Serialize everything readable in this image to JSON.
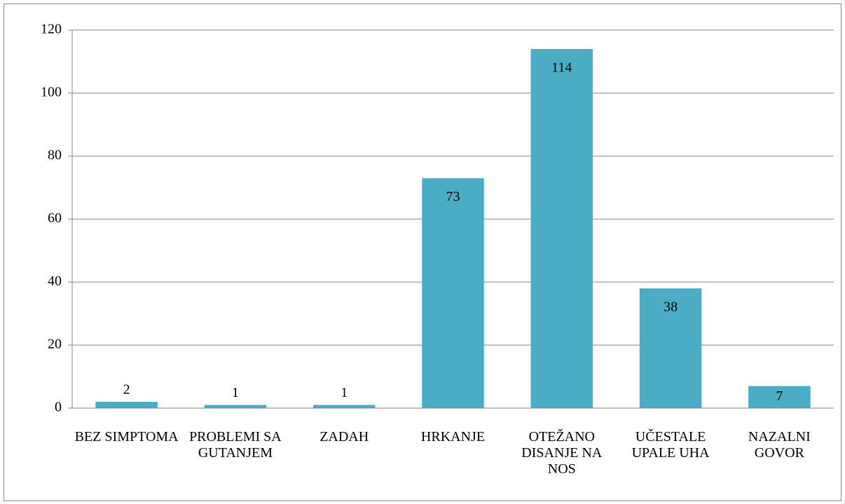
{
  "chart_data": {
    "type": "bar",
    "categories": [
      "BEZ SIMPTOMA",
      "PROBLEMI SA GUTANJEM",
      "ZADAH",
      "HRKANJE",
      "OTEŽANO DISANJE NA NOS",
      "UČESTALE UPALE UHA",
      "NAZALNI GOVOR"
    ],
    "values": [
      2,
      1,
      1,
      73,
      114,
      38,
      7
    ],
    "color": "#4bacc6",
    "ylim": [
      0,
      120
    ],
    "yticks": [
      0,
      20,
      40,
      60,
      80,
      100,
      120
    ],
    "grid": true
  }
}
